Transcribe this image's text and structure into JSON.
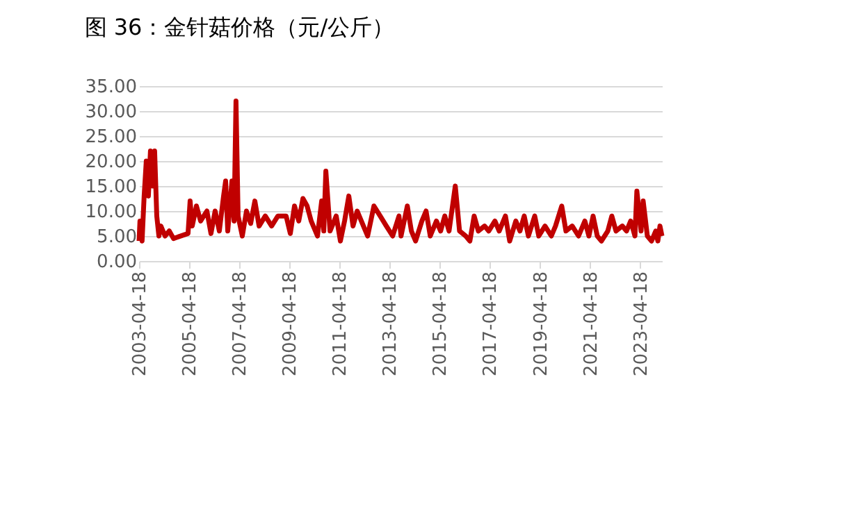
{
  "chart_data": {
    "type": "line",
    "title": "图 36：金针菇价格（元/公斤）",
    "x": [
      "2003-04-18",
      "2003-05",
      "2003-06",
      "2003-07",
      "2003-08",
      "2003-09",
      "2003-10",
      "2003-11",
      "2003-12",
      "2004-01",
      "2004-02",
      "2004-03",
      "2004-05",
      "2004-07",
      "2004-09",
      "2005-04",
      "2005-05",
      "2005-06",
      "2005-08",
      "2005-10",
      "2006-01",
      "2006-03",
      "2006-05",
      "2006-07",
      "2006-09",
      "2006-10",
      "2006-11",
      "2007-01",
      "2007-02",
      "2007-03",
      "2007-04",
      "2007-06",
      "2007-08",
      "2007-10",
      "2007-12",
      "2008-02",
      "2008-05",
      "2008-08",
      "2008-11",
      "2009-03",
      "2009-05",
      "2009-07",
      "2009-09",
      "2009-11",
      "2010-01",
      "2010-03",
      "2010-06",
      "2010-08",
      "2010-09",
      "2010-10",
      "2010-12",
      "2011-03",
      "2011-05",
      "2011-07",
      "2011-09",
      "2011-11",
      "2012-01",
      "2012-04",
      "2012-06",
      "2012-09",
      "2012-12",
      "2013-03",
      "2013-06",
      "2013-09",
      "2013-10",
      "2014-01",
      "2014-03",
      "2014-05",
      "2014-08",
      "2014-10",
      "2014-12",
      "2015-03",
      "2015-05",
      "2015-07",
      "2015-09",
      "2015-12",
      "2016-02",
      "2016-05",
      "2016-07",
      "2016-09",
      "2016-11",
      "2017-02",
      "2017-04",
      "2017-07",
      "2017-09",
      "2017-12",
      "2018-02",
      "2018-05",
      "2018-07",
      "2018-09",
      "2018-11",
      "2019-02",
      "2019-04",
      "2019-07",
      "2019-10",
      "2019-12",
      "2020-03",
      "2020-05",
      "2020-08",
      "2020-11",
      "2021-02",
      "2021-04",
      "2021-06",
      "2021-08",
      "2021-10",
      "2022-01",
      "2022-03",
      "2022-05",
      "2022-08",
      "2022-10",
      "2022-12",
      "2023-02",
      "2023-03",
      "2023-05",
      "2023-06",
      "2023-08",
      "2023-10",
      "2023-12",
      "2024-01",
      "2024-02",
      "2024-03"
    ],
    "series": [
      {
        "color": "#c00000",
        "values": [
          4,
          8,
          4,
          13,
          20,
          13,
          22,
          15,
          22,
          9,
          5,
          7,
          5,
          6,
          4.5,
          5.5,
          12,
          7,
          11,
          8,
          10,
          5.5,
          10,
          6,
          13,
          16,
          6,
          16,
          8,
          32,
          9,
          5,
          10,
          7.5,
          12,
          7,
          9,
          7,
          9,
          9,
          5.5,
          11,
          8,
          12.5,
          11,
          8,
          5,
          12,
          6,
          18,
          6,
          9,
          4,
          8,
          13,
          7,
          10,
          7,
          5,
          11,
          9,
          7,
          5,
          9,
          5,
          11,
          6,
          4,
          8,
          10,
          5,
          8,
          6,
          9,
          6,
          15,
          6,
          5,
          4,
          9,
          6,
          7,
          6,
          8,
          6,
          9,
          4,
          8,
          6,
          9,
          5,
          9,
          5,
          7,
          5,
          7,
          11,
          6,
          7,
          5,
          8,
          5,
          9,
          5,
          4,
          6,
          9,
          6,
          7,
          6,
          8,
          5,
          14,
          6,
          12,
          5,
          4,
          6,
          4,
          7,
          5
        ]
      }
    ],
    "xlim": [
      "2003-04-18",
      "2024-03"
    ],
    "xticks": [
      "2003-04-18",
      "2005-04-18",
      "2007-04-18",
      "2009-04-18",
      "2011-04-18",
      "2013-04-18",
      "2015-04-18",
      "2017-04-18",
      "2019-04-18",
      "2021-04-18",
      "2023-04-18"
    ],
    "ylim": [
      0,
      35
    ],
    "yticks": [
      {
        "value": 0,
        "label": "0.00"
      },
      {
        "value": 5,
        "label": "5.00"
      },
      {
        "value": 10,
        "label": "10.00"
      },
      {
        "value": 15,
        "label": "15.00"
      },
      {
        "value": 20,
        "label": "20.00"
      },
      {
        "value": 25,
        "label": "25.00"
      },
      {
        "value": 30,
        "label": "30.00"
      },
      {
        "value": 35,
        "label": "35.00"
      }
    ],
    "grid": "y",
    "legend": false,
    "marker": "none",
    "line_style": "solid"
  }
}
